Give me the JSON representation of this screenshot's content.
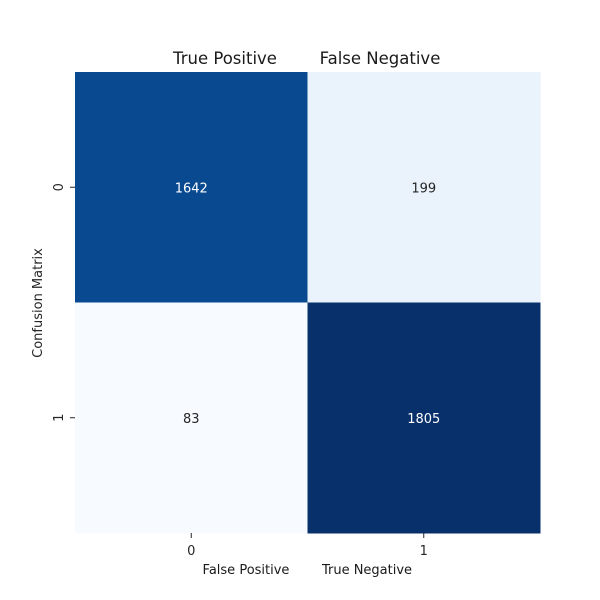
{
  "chart_data": {
    "type": "heatmap",
    "ylabel": "Confusion Matrix",
    "x_tick_labels": [
      "0",
      "1"
    ],
    "y_tick_labels": [
      "0",
      "1"
    ],
    "top_titles": [
      "True Positive",
      "False Negative"
    ],
    "bottom_titles": [
      "False Positive",
      "True Negative"
    ],
    "values": [
      [
        1642,
        199
      ],
      [
        83,
        1805
      ]
    ],
    "colormap": "Blues",
    "vmin": 83,
    "vmax": 1805,
    "colorbar": false,
    "annotations": true
  }
}
